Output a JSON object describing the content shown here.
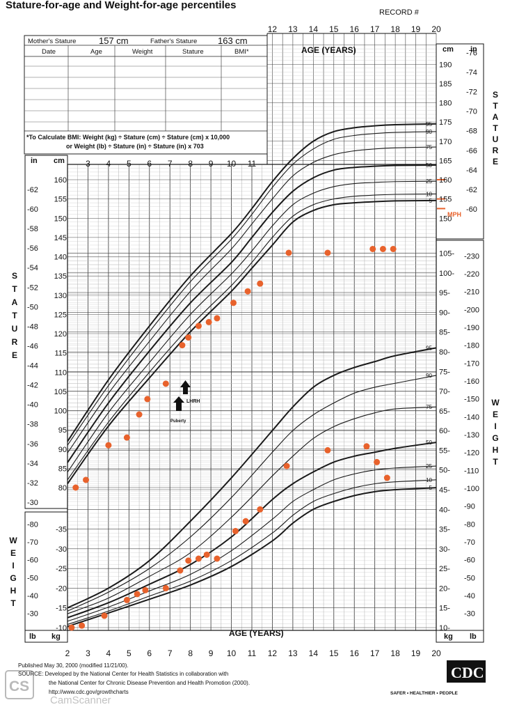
{
  "title": "Stature-for-age and Weight-for-age percentiles",
  "record_label": "RECORD #",
  "table": {
    "mother_label": "Mother's Stature",
    "mother_value": "157 cm",
    "father_label": "Father's Stature",
    "father_value": "163 cm",
    "columns": [
      "Date",
      "Age",
      "Weight",
      "Stature",
      "BMI*"
    ],
    "bmi_note_1": "*To Calculate BMI: Weight (kg) ÷ Stature (cm) ÷ Stature (cm) x 10,000",
    "bmi_note_2": "or Weight (lb) ÷ Stature (in) ÷ Stature (in) x 703"
  },
  "axis": {
    "age_label": "AGE (YEARS)",
    "stature_label": "STATURE",
    "weight_label": "WEIGHT",
    "unit_cm": "cm",
    "unit_in": "in",
    "unit_kg": "kg",
    "unit_lb": "lb"
  },
  "annotations": {
    "lhrh": "LHRH",
    "puberty": "Puberty",
    "mph": "MPH"
  },
  "footer": {
    "published": "Published May 30, 2000 (modified 11/21/00).",
    "source_1": "SOURCE: Developed by the National Center for Health Statistics in collaboration with",
    "source_2": "the National Center for Chronic Disease Prevention and Health Promotion (2000).",
    "url": "http://www.cdc.gov/growthcharts",
    "cdc": "CDC",
    "slogan": "SAFER • HEALTHIER • PEOPLE",
    "camscanner": "CamScanner",
    "cs": "CS"
  },
  "colors": {
    "point": "#e8622c",
    "line": "#1a1a1a"
  },
  "chart_data": [
    {
      "type": "line",
      "title": "Stature-for-age",
      "xlabel": "AGE (YEARS)",
      "ylabel": "STATURE (cm)",
      "xlim": [
        2,
        20
      ],
      "ylim": [
        77,
        195
      ],
      "percentiles": [
        "95",
        "90",
        "75",
        "50",
        "25",
        "10",
        "5"
      ],
      "x": [
        2,
        4,
        6,
        8,
        10,
        11,
        12,
        13,
        14,
        15,
        16,
        17,
        18,
        20
      ],
      "series": [
        {
          "name": "95",
          "values": [
            92,
            108,
            122,
            135,
            146,
            152.5,
            159.5,
            165.5,
            170,
            172.5,
            173.5,
            174,
            174.3,
            174.5
          ]
        },
        {
          "name": "90",
          "values": [
            91,
            106.5,
            120.5,
            133.5,
            144.5,
            151,
            158,
            164,
            168,
            170.5,
            171.5,
            172,
            172.3,
            172.5
          ]
        },
        {
          "name": "75",
          "values": [
            89,
            104.5,
            118,
            131,
            142,
            148.5,
            155,
            161,
            164.5,
            166.5,
            167.5,
            168,
            168.3,
            168.5
          ]
        },
        {
          "name": "50",
          "values": [
            86.5,
            102,
            115.5,
            128,
            138.5,
            145,
            151.5,
            157,
            160.5,
            162.5,
            163.2,
            163.5,
            163.7,
            163.8
          ]
        },
        {
          "name": "25",
          "values": [
            84,
            99.5,
            112.5,
            125,
            135.5,
            141.5,
            148,
            153.5,
            156.5,
            158.2,
            159,
            159.3,
            159.5,
            159.6
          ]
        },
        {
          "name": "10",
          "values": [
            82,
            97,
            110,
            122,
            132.5,
            138.5,
            145,
            150.5,
            153.5,
            155,
            155.7,
            156,
            156.2,
            156.3
          ]
        },
        {
          "name": "5",
          "values": [
            81,
            96,
            108.5,
            120.5,
            131,
            137,
            143,
            149,
            152,
            153.5,
            154,
            154.3,
            154.5,
            154.6
          ]
        }
      ],
      "points": [
        [
          2.4,
          80
        ],
        [
          2.9,
          82
        ],
        [
          4.0,
          91
        ],
        [
          4.9,
          93
        ],
        [
          5.5,
          99
        ],
        [
          5.9,
          103
        ],
        [
          6.8,
          107
        ],
        [
          7.6,
          117
        ],
        [
          7.9,
          119
        ],
        [
          8.4,
          122
        ],
        [
          8.9,
          123
        ],
        [
          9.3,
          124
        ],
        [
          10.1,
          128
        ],
        [
          10.8,
          131
        ],
        [
          11.4,
          133
        ],
        [
          12.8,
          141
        ],
        [
          14.7,
          141
        ],
        [
          16.9,
          142
        ],
        [
          17.4,
          142
        ],
        [
          17.9,
          142
        ]
      ],
      "mph_cm": [
        155,
        160,
        152.5
      ],
      "arrows_age": [
        7.4,
        7.8
      ]
    },
    {
      "type": "line",
      "title": "Weight-for-age",
      "xlabel": "AGE (YEARS)",
      "ylabel": "WEIGHT (kg)",
      "xlim": [
        2,
        20
      ],
      "ylim": [
        8,
        105
      ],
      "percentiles": [
        "95",
        "90",
        "75",
        "50",
        "25",
        "10",
        "5"
      ],
      "x": [
        2,
        4,
        6,
        8,
        10,
        12,
        13,
        14,
        15,
        16,
        17,
        18,
        20
      ],
      "series": [
        {
          "name": "95",
          "values": [
            15,
            20,
            27,
            37,
            48,
            60,
            66,
            71,
            74,
            76,
            77.5,
            79,
            81
          ]
        },
        {
          "name": "90",
          "values": [
            14.2,
            19,
            25,
            33,
            43,
            54.5,
            60,
            64,
            67,
            69.5,
            71,
            72,
            74
          ]
        },
        {
          "name": "75",
          "values": [
            13.5,
            17.5,
            23,
            29,
            38,
            48.5,
            53.5,
            58,
            61,
            63,
            64.5,
            65.5,
            66
          ]
        },
        {
          "name": "50",
          "values": [
            12.5,
            16.3,
            21,
            26,
            33,
            42.5,
            46.5,
            49.5,
            52,
            53.5,
            54.5,
            55.5,
            57
          ]
        },
        {
          "name": "25",
          "values": [
            11.6,
            15.2,
            19.3,
            23.5,
            29.5,
            37.5,
            42,
            45,
            47.5,
            49,
            50,
            50.5,
            51
          ]
        },
        {
          "name": "10",
          "values": [
            10.8,
            14.2,
            18,
            21.8,
            27,
            34,
            38.5,
            42,
            44,
            45.5,
            46.5,
            47,
            47.5
          ]
        },
        {
          "name": "5",
          "values": [
            10.3,
            13.7,
            17.2,
            20.8,
            25.5,
            32,
            36.5,
            40,
            42,
            43.5,
            44.5,
            45,
            45.5
          ]
        }
      ],
      "points": [
        [
          2.2,
          10
        ],
        [
          2.7,
          10.5
        ],
        [
          3.8,
          13
        ],
        [
          4.9,
          17
        ],
        [
          5.4,
          18.5
        ],
        [
          5.8,
          19.5
        ],
        [
          6.8,
          20
        ],
        [
          7.5,
          24.5
        ],
        [
          7.9,
          27
        ],
        [
          8.4,
          27.5
        ],
        [
          8.8,
          28.5
        ],
        [
          9.3,
          27.5
        ],
        [
          10.2,
          34.5
        ],
        [
          10.7,
          37
        ],
        [
          11.4,
          40
        ],
        [
          12.7,
          51
        ],
        [
          14.7,
          55
        ],
        [
          16.6,
          56
        ],
        [
          17.1,
          52
        ],
        [
          17.6,
          48
        ]
      ]
    }
  ]
}
